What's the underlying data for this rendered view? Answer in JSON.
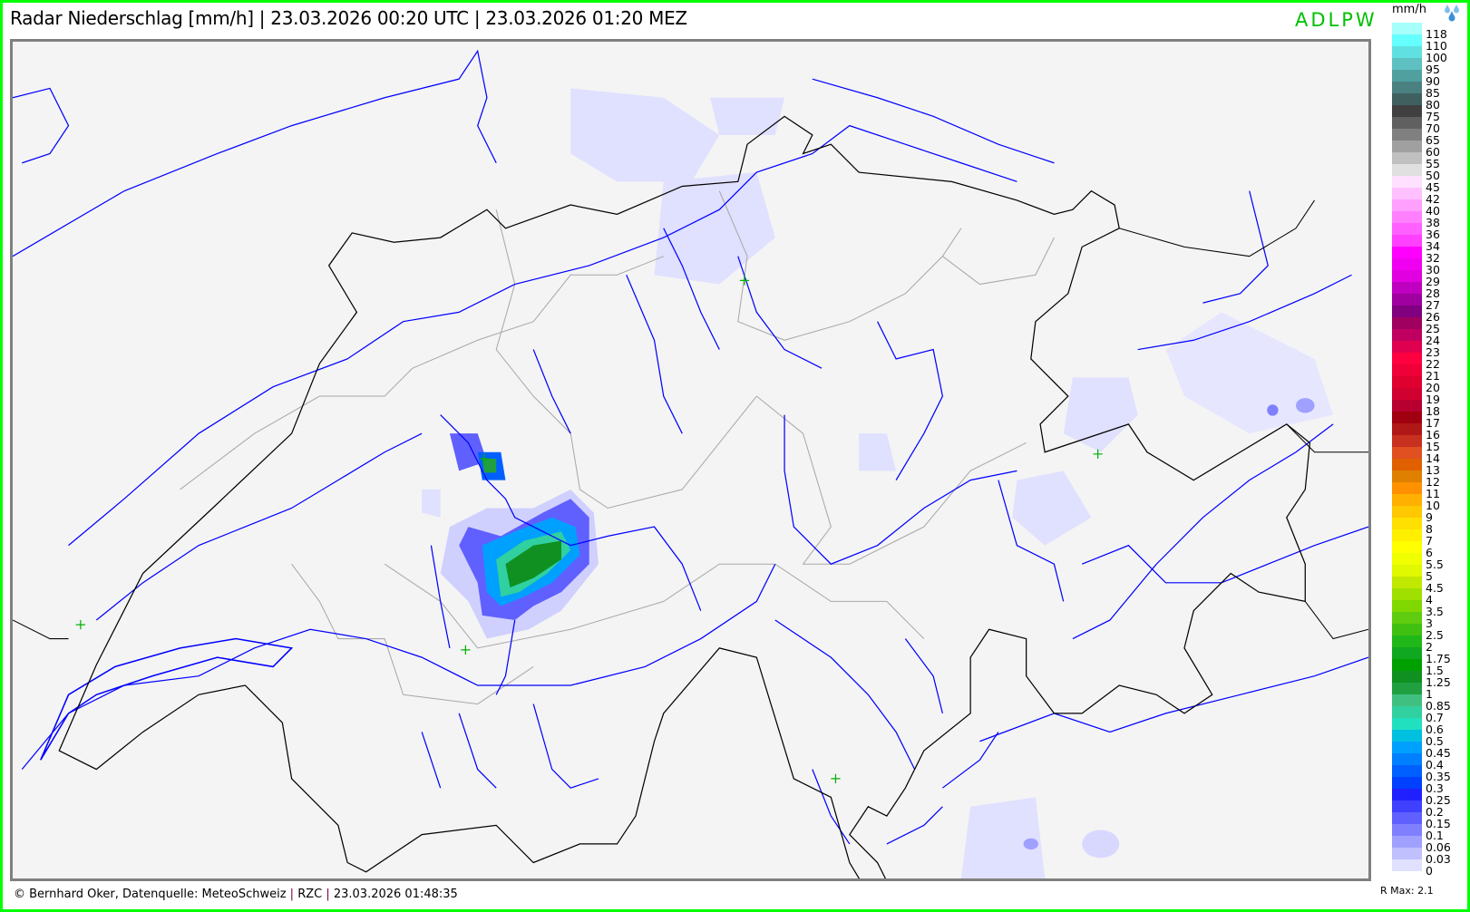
{
  "header": {
    "title": "Radar Niederschlag [mm/h] | 23.03.2026 00:20 UTC | 23.03.2026 01:20 MEZ",
    "brand": "ADLPW"
  },
  "legend": {
    "unit": "mm/h",
    "icon": "raindrops-icon",
    "items": [
      {
        "label": "118",
        "color": "#a6fffb"
      },
      {
        "label": "110",
        "color": "#66ffff"
      },
      {
        "label": "100",
        "color": "#60e0e0"
      },
      {
        "label": "95",
        "color": "#5ec0c0"
      },
      {
        "label": "90",
        "color": "#50a0a0"
      },
      {
        "label": "85",
        "color": "#4a8080"
      },
      {
        "label": "80",
        "color": "#406060"
      },
      {
        "label": "75",
        "color": "#404040"
      },
      {
        "label": "70",
        "color": "#606060"
      },
      {
        "label": "65",
        "color": "#808080"
      },
      {
        "label": "60",
        "color": "#a0a0a0"
      },
      {
        "label": "55",
        "color": "#c0c0c0"
      },
      {
        "label": "50",
        "color": "#e0e0e0"
      },
      {
        "label": "45",
        "color": "#ffe0ff"
      },
      {
        "label": "42",
        "color": "#ffc0ff"
      },
      {
        "label": "40",
        "color": "#ffa0ff"
      },
      {
        "label": "38",
        "color": "#ff80ff"
      },
      {
        "label": "36",
        "color": "#ff60ff"
      },
      {
        "label": "34",
        "color": "#ff40ff"
      },
      {
        "label": "32",
        "color": "#ff00ff"
      },
      {
        "label": "30",
        "color": "#f000f0"
      },
      {
        "label": "29",
        "color": "#e000e0"
      },
      {
        "label": "28",
        "color": "#c000c0"
      },
      {
        "label": "27",
        "color": "#a000a0"
      },
      {
        "label": "26",
        "color": "#800080"
      },
      {
        "label": "25",
        "color": "#a00060"
      },
      {
        "label": "24",
        "color": "#c00060"
      },
      {
        "label": "23",
        "color": "#e00050"
      },
      {
        "label": "22",
        "color": "#ff0040"
      },
      {
        "label": "21",
        "color": "#f00038"
      },
      {
        "label": "20",
        "color": "#e00030"
      },
      {
        "label": "19",
        "color": "#d00030"
      },
      {
        "label": "18",
        "color": "#b80030"
      },
      {
        "label": "17",
        "color": "#a00010"
      },
      {
        "label": "16",
        "color": "#b01818"
      },
      {
        "label": "15",
        "color": "#c83020"
      },
      {
        "label": "14",
        "color": "#e05020"
      },
      {
        "label": "13",
        "color": "#e06000"
      },
      {
        "label": "12",
        "color": "#e08000"
      },
      {
        "label": "11",
        "color": "#ff9000"
      },
      {
        "label": "10",
        "color": "#ffb000"
      },
      {
        "label": "9",
        "color": "#ffc800"
      },
      {
        "label": "8",
        "color": "#ffe000"
      },
      {
        "label": "7",
        "color": "#fff000"
      },
      {
        "label": "6",
        "color": "#ffff00"
      },
      {
        "label": "5.5",
        "color": "#f0ff00"
      },
      {
        "label": "5",
        "color": "#e0f800"
      },
      {
        "label": "4.5",
        "color": "#c0e800"
      },
      {
        "label": "4",
        "color": "#a0e000"
      },
      {
        "label": "3.5",
        "color": "#80d800"
      },
      {
        "label": "3",
        "color": "#60cc10"
      },
      {
        "label": "2.5",
        "color": "#40c010"
      },
      {
        "label": "2",
        "color": "#20b818"
      },
      {
        "label": "1.75",
        "color": "#10a820"
      },
      {
        "label": "1.5",
        "color": "#00a000"
      },
      {
        "label": "1.25",
        "color": "#109020"
      },
      {
        "label": "1",
        "color": "#20a040"
      },
      {
        "label": "0.85",
        "color": "#40c080"
      },
      {
        "label": "0.7",
        "color": "#30d0a0"
      },
      {
        "label": "0.6",
        "color": "#20e0c0"
      },
      {
        "label": "0.5",
        "color": "#00c0e0"
      },
      {
        "label": "0.45",
        "color": "#00a0ff"
      },
      {
        "label": "0.4",
        "color": "#0080ff"
      },
      {
        "label": "0.35",
        "color": "#0060ff"
      },
      {
        "label": "0.3",
        "color": "#0040ff"
      },
      {
        "label": "0.25",
        "color": "#2020ff"
      },
      {
        "label": "0.2",
        "color": "#4040ff"
      },
      {
        "label": "0.15",
        "color": "#6060ff"
      },
      {
        "label": "0.1",
        "color": "#8080ff"
      },
      {
        "label": "0.06",
        "color": "#a0a0ff"
      },
      {
        "label": "0.03",
        "color": "#c0c0ff"
      },
      {
        "label": "0",
        "color": "#e0e0ff"
      }
    ],
    "rmax": "R Max: 2.1"
  },
  "footer": {
    "credit": "© Bernhard Oker, Datenquelle: MeteoSchweiz",
    "product": "RZC",
    "timestamp": "23.03.2026 01:48:35"
  },
  "colors": {
    "frame": "#00ff00",
    "brand": "#00c000",
    "river": "#0000ff",
    "border": "#000000",
    "canton": "#a0a0a0"
  }
}
